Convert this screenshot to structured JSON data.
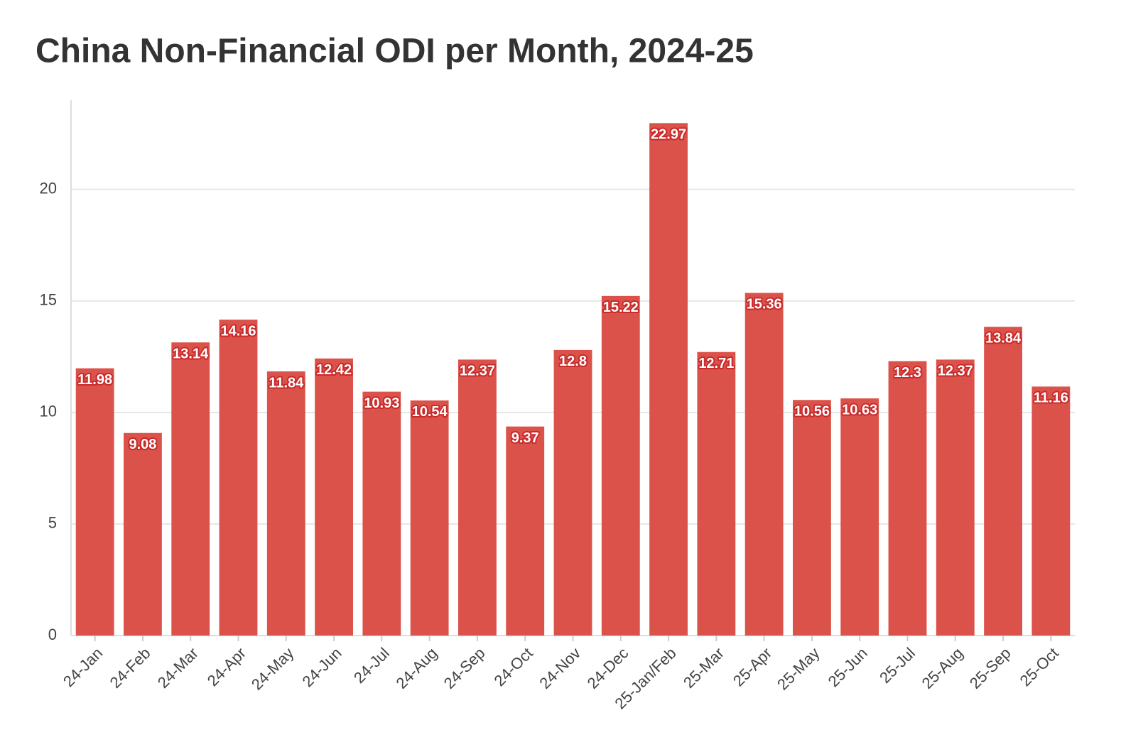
{
  "chart_data": {
    "type": "bar",
    "title": "China Non-Financial ODI per Month, 2024-25",
    "categories": [
      "24-Jan",
      "24-Feb",
      "24-Mar",
      "24-Apr",
      "24-May",
      "24-Jun",
      "24-Jul",
      "24-Aug",
      "24-Sep",
      "24-Oct",
      "24-Nov",
      "24-Dec",
      "25-Jan/Feb",
      "25-Mar",
      "25-Apr",
      "25-May",
      "25-Jun",
      "25-Jul",
      "25-Aug",
      "25-Sep",
      "25-Oct"
    ],
    "values": [
      11.98,
      9.08,
      13.14,
      14.16,
      11.84,
      12.42,
      10.93,
      10.54,
      12.37,
      9.37,
      12.8,
      15.22,
      22.97,
      12.71,
      15.36,
      10.56,
      10.63,
      12.3,
      12.37,
      13.84,
      11.16
    ],
    "color": "#db524a",
    "ylim": [
      0,
      24
    ],
    "yticks": [
      0,
      5,
      10,
      15,
      20
    ],
    "grid": true
  }
}
